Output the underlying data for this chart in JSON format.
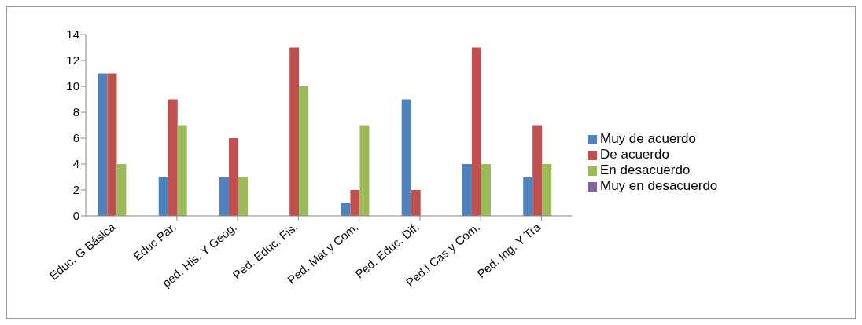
{
  "chart_data": {
    "type": "bar",
    "categories": [
      "Educ. G Básica",
      "Educ Par.",
      "ped. His. Y Geog.",
      "Ped. Educ. Fis.",
      "Ped. Mat y Com.",
      "Ped. Educ. Dif.",
      "Ped.l Cas y Com.",
      "Ped. Ing. Y Tra"
    ],
    "series": [
      {
        "name": "Muy de acuerdo",
        "color": "#4f81bd",
        "values": [
          11,
          3,
          3,
          0,
          1,
          9,
          4,
          3
        ]
      },
      {
        "name": "De acuerdo",
        "color": "#c0504d",
        "values": [
          11,
          9,
          6,
          13,
          2,
          2,
          13,
          7
        ]
      },
      {
        "name": "En desacuerdo",
        "color": "#9bbb59",
        "values": [
          4,
          7,
          3,
          10,
          7,
          0,
          4,
          4
        ]
      },
      {
        "name": "Muy en desacuerdo",
        "color": "#8064a2",
        "values": [
          0,
          0,
          0,
          0,
          0,
          0,
          0,
          0
        ]
      }
    ],
    "ylim": [
      0,
      14
    ],
    "yticks": [
      0,
      2,
      4,
      6,
      8,
      10,
      12,
      14
    ],
    "grid": false,
    "legend": "right"
  }
}
